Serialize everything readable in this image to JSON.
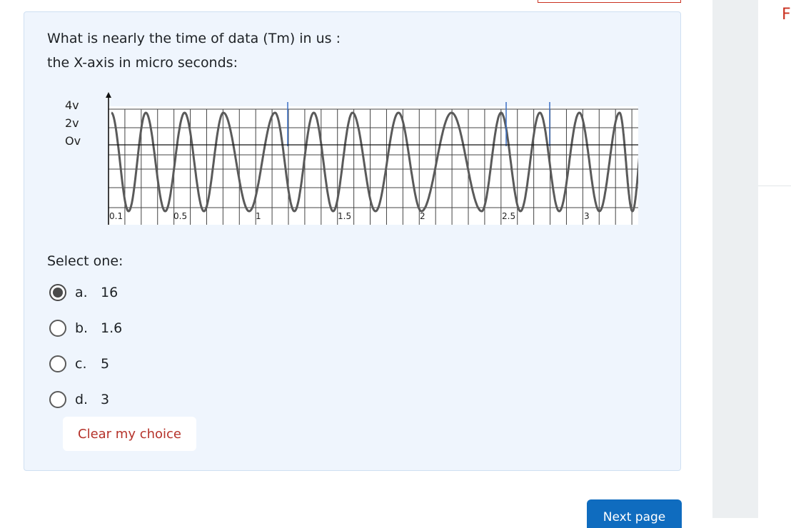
{
  "question": {
    "line1": "What is nearly the time of data (Tm) in us :",
    "line2": "the X-axis in micro seconds:"
  },
  "figure": {
    "y_tick_labels": [
      "4v",
      "2v",
      "Ov"
    ],
    "x_tick_labels": [
      "0.1",
      "0.5",
      "1",
      "1.5",
      "2",
      "2.5",
      "3"
    ],
    "x_unit": "us"
  },
  "select_label": "Select one:",
  "answers": [
    {
      "letter": "a.",
      "value": "16",
      "selected": true
    },
    {
      "letter": "b.",
      "value": "1.6",
      "selected": false
    },
    {
      "letter": "c.",
      "value": "5",
      "selected": false
    },
    {
      "letter": "d.",
      "value": "3",
      "selected": false
    }
  ],
  "clear_label": "Clear my choice",
  "next_label": "Next page",
  "right_edge_text": "F",
  "colors": {
    "card_bg": "#eff5fd",
    "link_red": "#b5322a",
    "primary_blue": "#0f6cbf",
    "marker_blue": "#3b6fc4"
  }
}
